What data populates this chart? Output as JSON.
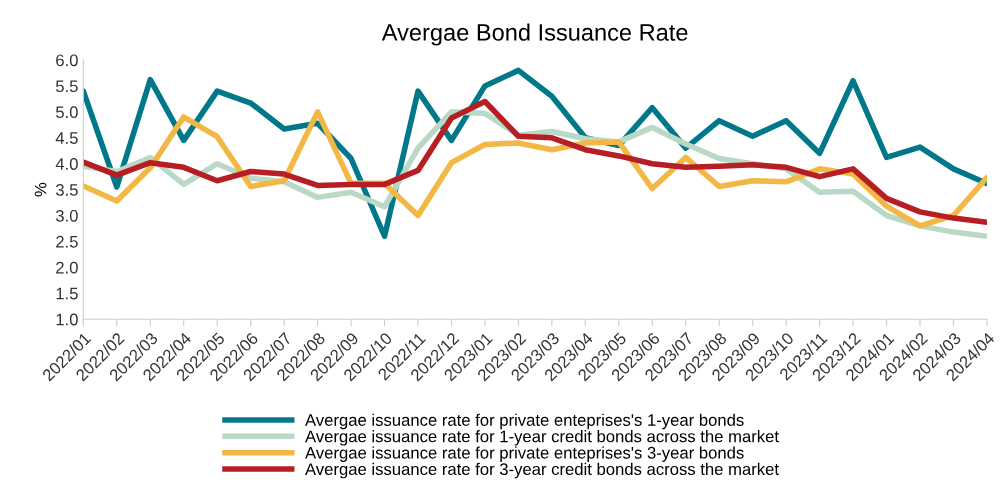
{
  "chart_data": {
    "type": "line",
    "title": "Avergae Bond Issuance Rate",
    "ylabel": "%",
    "categories": [
      "2022/01",
      "2022/02",
      "2022/03",
      "2022/04",
      "2022/05",
      "2022/06",
      "2022/07",
      "2022/08",
      "2022/09",
      "2022/10",
      "2022/11",
      "2022/12",
      "2023/01",
      "2023/02",
      "2023/03",
      "2023/04",
      "2023/05",
      "2023/06",
      "2023/07",
      "2023/08",
      "2023/09",
      "2023/10",
      "2023/11",
      "2023/12",
      "2024/01",
      "2024/02",
      "2024/03",
      "2024/04"
    ],
    "series": [
      {
        "name": "Avergae issuance rate for private enteprises's 1-year bonds",
        "color": "#00788a",
        "values": [
          5.4,
          3.55,
          5.62,
          4.45,
          5.4,
          5.17,
          4.67,
          4.78,
          4.1,
          2.6,
          5.4,
          4.45,
          5.5,
          5.8,
          5.3,
          4.5,
          4.35,
          5.08,
          4.3,
          4.83,
          4.53,
          4.83,
          4.2,
          5.6,
          4.12,
          4.32,
          3.9,
          3.62
        ]
      },
      {
        "name": "Avergae issuance rate for 1-year credit bonds across the market",
        "color": "#b9d8c6",
        "values": [
          3.95,
          3.85,
          4.12,
          3.6,
          4.0,
          3.72,
          3.65,
          3.35,
          3.45,
          3.17,
          4.3,
          5.0,
          4.97,
          4.55,
          4.62,
          4.48,
          4.42,
          4.7,
          4.38,
          4.1,
          4.0,
          3.9,
          3.45,
          3.47,
          3.0,
          2.8,
          2.68,
          2.6
        ]
      },
      {
        "name": "Avergae issuance rate for private enteprises's 3-year bonds",
        "color": "#f2b744",
        "values": [
          3.57,
          3.28,
          3.92,
          4.9,
          4.52,
          3.56,
          3.67,
          5.0,
          3.62,
          3.62,
          3.0,
          4.02,
          4.37,
          4.4,
          4.27,
          4.4,
          4.42,
          3.52,
          4.12,
          3.56,
          3.67,
          3.65,
          3.9,
          3.8,
          3.18,
          2.8,
          3.0,
          3.73
        ]
      },
      {
        "name": "Avergae issuance rate for 3-year credit bonds across the market",
        "color": "#b61e23",
        "values": [
          4.03,
          3.78,
          4.02,
          3.93,
          3.67,
          3.85,
          3.8,
          3.58,
          3.6,
          3.6,
          3.87,
          4.88,
          5.2,
          4.53,
          4.5,
          4.27,
          4.15,
          4.0,
          3.93,
          3.95,
          3.98,
          3.93,
          3.75,
          3.9,
          3.33,
          3.07,
          2.95,
          2.87
        ]
      }
    ],
    "ylim": [
      1.0,
      6.0
    ],
    "yticks": [
      {
        "value": 1.0,
        "label": "1.0"
      },
      {
        "value": 1.5,
        "label": "1.5"
      },
      {
        "value": 2.0,
        "label": "2.0"
      },
      {
        "value": 2.5,
        "label": "2.5"
      },
      {
        "value": 3.0,
        "label": "3.0"
      },
      {
        "value": 3.5,
        "label": "3.5"
      },
      {
        "value": 4.0,
        "label": "4.0"
      },
      {
        "value": 4.5,
        "label": "4.5"
      },
      {
        "value": 5.0,
        "label": "5.0"
      },
      {
        "value": 5.5,
        "label": "5.5"
      },
      {
        "value": 6.0,
        "label": "6.0"
      }
    ],
    "grid": false,
    "legend": "bottom",
    "marker": "none",
    "line_style": "solid"
  }
}
